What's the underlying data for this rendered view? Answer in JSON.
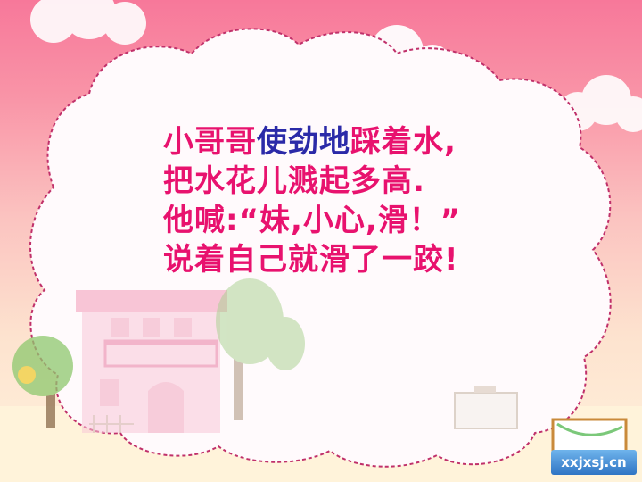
{
  "poem": {
    "lines": [
      {
        "segments": [
          {
            "text": "小哥哥",
            "hl": false
          },
          {
            "text": "使劲地",
            "hl": true
          },
          {
            "text": "踩着水,",
            "hl": false
          }
        ]
      },
      {
        "segments": [
          {
            "text": "把水花儿溅起多高.",
            "hl": false
          }
        ]
      },
      {
        "segments": [
          {
            "text": "他喊:“妹,小心,滑！”",
            "hl": false
          }
        ]
      },
      {
        "segments": [
          {
            "text": "说着自己就滑了一跤!",
            "hl": false
          }
        ]
      }
    ]
  },
  "watermark": {
    "text": "xxjxsj.cn"
  },
  "colors": {
    "text": "#e8126e",
    "highlight": "#2b2aa8",
    "cloud_border": "#c0306a",
    "sky_top": "#f7789a"
  }
}
